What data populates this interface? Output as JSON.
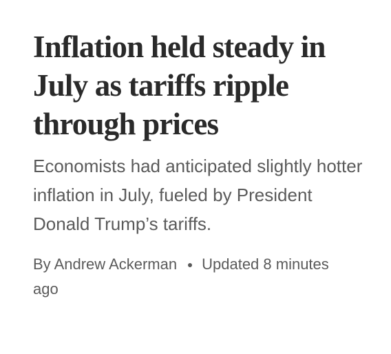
{
  "article": {
    "headline": "Inflation held steady in July as tariffs ripple through prices",
    "subheadline": "Economists had anticipated slightly hotter inflation in July, fueled by President Donald Trump’s tariffs.",
    "byline": {
      "author": "By Andrew Ackerman",
      "updated": "Updated 8 minutes ago"
    }
  }
}
